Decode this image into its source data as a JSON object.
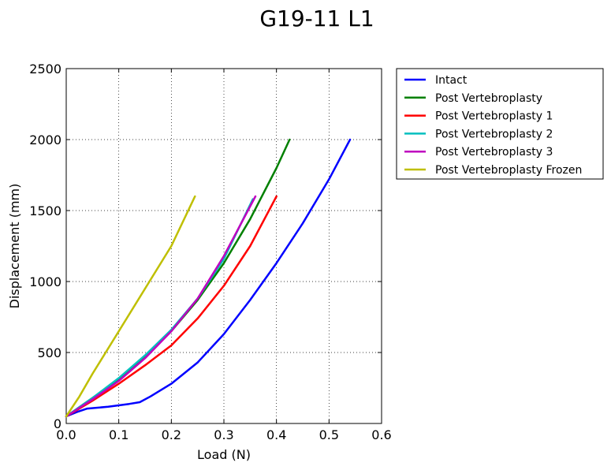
{
  "chart_data": {
    "type": "line",
    "title": "G19-11 L1",
    "xlabel": "Load (N)",
    "ylabel": "Displacement (mm)",
    "xlim": [
      0,
      0.6
    ],
    "ylim": [
      0,
      2500
    ],
    "xticks": [
      0.0,
      0.1,
      0.2,
      0.3,
      0.4,
      0.5,
      0.6
    ],
    "xtick_labels": [
      "0.0",
      "0.1",
      "0.2",
      "0.3",
      "0.4",
      "0.5",
      "0.6"
    ],
    "yticks": [
      0,
      500,
      1000,
      1500,
      2000,
      2500
    ],
    "ytick_labels": [
      "0",
      "500",
      "1000",
      "1500",
      "2000",
      "2500"
    ],
    "grid": true,
    "legend_position": "outside-upper-right",
    "series": [
      {
        "name": "Intact",
        "color": "#0000ff",
        "x": [
          0.0,
          0.02,
          0.04,
          0.08,
          0.12,
          0.14,
          0.16,
          0.2,
          0.25,
          0.3,
          0.35,
          0.4,
          0.45,
          0.5,
          0.54
        ],
        "y": [
          50,
          80,
          105,
          118,
          138,
          150,
          190,
          280,
          430,
          630,
          870,
          1130,
          1410,
          1720,
          2000
        ]
      },
      {
        "name": "Post Vertebroplasty",
        "color": "#008000",
        "x": [
          0.0,
          0.05,
          0.1,
          0.15,
          0.2,
          0.25,
          0.3,
          0.35,
          0.4,
          0.425
        ],
        "y": [
          50,
          180,
          310,
          470,
          650,
          870,
          1130,
          1440,
          1800,
          2000
        ]
      },
      {
        "name": "Post Vertebroplasty 1",
        "color": "#ff0000",
        "x": [
          0.0,
          0.05,
          0.1,
          0.15,
          0.2,
          0.25,
          0.3,
          0.35,
          0.4
        ],
        "y": [
          50,
          160,
          280,
          410,
          550,
          740,
          970,
          1250,
          1600
        ]
      },
      {
        "name": "Post Vertebroplasty 2",
        "color": "#00bfbf",
        "x": [
          0.0,
          0.05,
          0.1,
          0.15,
          0.2,
          0.25,
          0.3,
          0.355
        ],
        "y": [
          50,
          180,
          320,
          480,
          660,
          880,
          1160,
          1580
        ]
      },
      {
        "name": "Post Vertebroplasty 3",
        "color": "#bf00bf",
        "x": [
          0.0,
          0.05,
          0.1,
          0.15,
          0.2,
          0.25,
          0.3,
          0.36
        ],
        "y": [
          50,
          170,
          300,
          460,
          650,
          880,
          1180,
          1600
        ]
      },
      {
        "name": "Post Vertebroplasty Frozen",
        "color": "#bfbf00",
        "x": [
          0.0,
          0.025,
          0.05,
          0.1,
          0.15,
          0.2,
          0.245
        ],
        "y": [
          50,
          190,
          350,
          650,
          950,
          1250,
          1600
        ]
      }
    ]
  }
}
